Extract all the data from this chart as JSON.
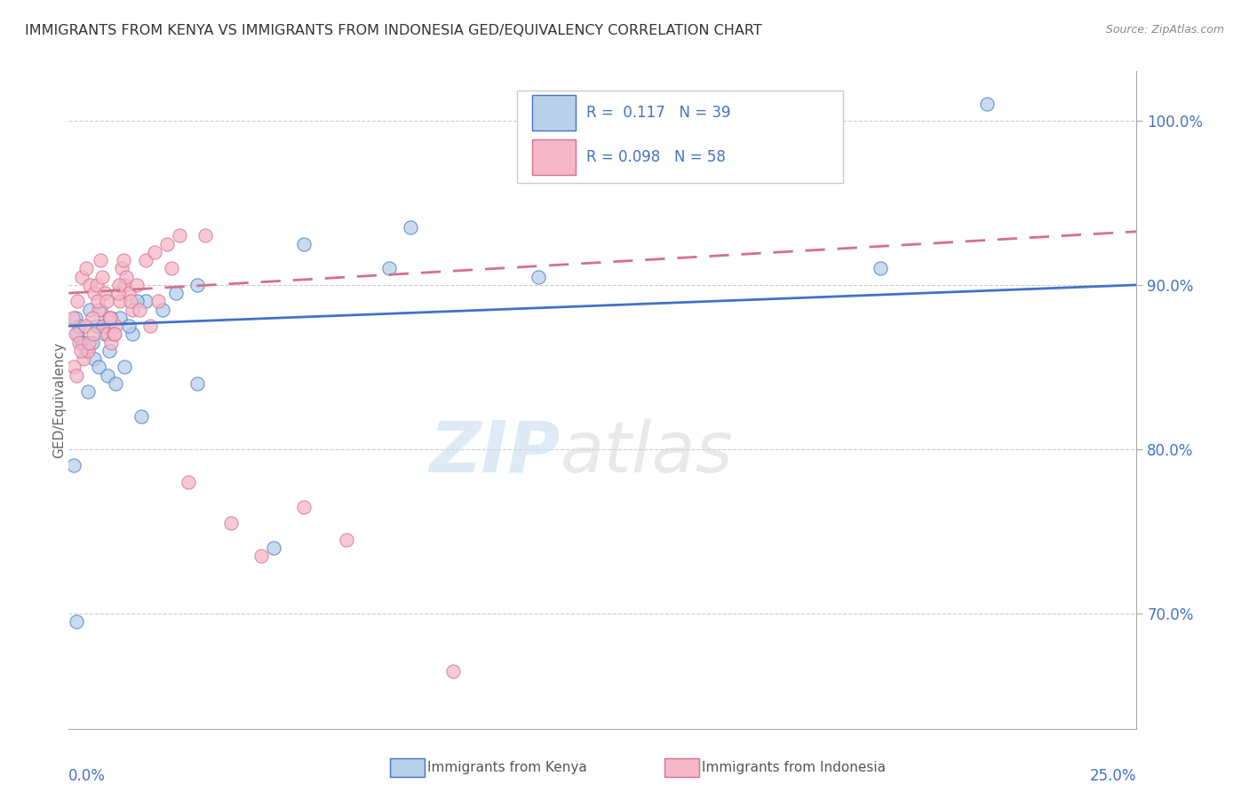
{
  "title": "IMMIGRANTS FROM KENYA VS IMMIGRANTS FROM INDONESIA GED/EQUIVALENCY CORRELATION CHART",
  "source": "Source: ZipAtlas.com",
  "ylabel": "GED/Equivalency",
  "xlim": [
    0.0,
    25.0
  ],
  "ylim": [
    63.0,
    103.0
  ],
  "yticks": [
    70.0,
    80.0,
    90.0,
    100.0
  ],
  "ytick_labels": [
    "70.0%",
    "80.0%",
    "90.0%",
    "100.0%"
  ],
  "color_kenya": "#b8d0ea",
  "color_indonesia": "#f4b8c8",
  "line_color_kenya": "#4472c4",
  "line_color_indonesia": "#d47090",
  "kenya_x": [
    0.5,
    0.8,
    1.0,
    0.2,
    0.3,
    0.4,
    0.6,
    0.7,
    0.9,
    1.1,
    1.3,
    1.5,
    0.15,
    0.25,
    0.35,
    1.8,
    2.2,
    2.5,
    3.0,
    0.55,
    0.65,
    0.75,
    0.85,
    0.95,
    1.2,
    1.4,
    1.6,
    5.5,
    8.0,
    1.7,
    3.0,
    19.0,
    21.5,
    7.5,
    4.8,
    0.12,
    0.18,
    11.0,
    0.45
  ],
  "kenya_y": [
    88.5,
    87.5,
    88.0,
    87.0,
    86.5,
    86.0,
    85.5,
    85.0,
    84.5,
    84.0,
    85.0,
    87.0,
    88.0,
    87.5,
    86.5,
    89.0,
    88.5,
    89.5,
    90.0,
    86.5,
    87.5,
    88.5,
    87.0,
    86.0,
    88.0,
    87.5,
    89.0,
    92.5,
    93.5,
    82.0,
    84.0,
    91.0,
    101.0,
    91.0,
    74.0,
    79.0,
    69.5,
    90.5,
    83.5
  ],
  "indonesia_x": [
    0.1,
    0.2,
    0.3,
    0.4,
    0.5,
    0.6,
    0.7,
    0.8,
    0.9,
    1.0,
    1.1,
    1.2,
    1.3,
    1.4,
    1.5,
    0.15,
    0.25,
    0.35,
    0.45,
    0.55,
    0.65,
    0.75,
    0.85,
    0.95,
    1.05,
    1.15,
    1.25,
    1.35,
    1.6,
    1.8,
    2.0,
    2.3,
    2.6,
    0.12,
    0.18,
    0.28,
    0.38,
    0.48,
    0.58,
    0.68,
    0.78,
    0.88,
    0.98,
    1.08,
    1.18,
    1.28,
    1.45,
    1.65,
    1.9,
    2.1,
    2.4,
    3.2,
    5.5,
    9.0,
    3.8,
    2.8,
    6.5,
    4.5
  ],
  "indonesia_y": [
    88.0,
    89.0,
    90.5,
    91.0,
    90.0,
    89.5,
    88.5,
    87.5,
    87.0,
    86.5,
    87.5,
    89.0,
    90.0,
    89.5,
    88.5,
    87.0,
    86.5,
    85.5,
    86.0,
    88.0,
    90.0,
    91.5,
    89.5,
    88.0,
    87.0,
    89.5,
    91.0,
    90.5,
    90.0,
    91.5,
    92.0,
    92.5,
    93.0,
    85.0,
    84.5,
    86.0,
    87.5,
    86.5,
    87.0,
    89.0,
    90.5,
    89.0,
    88.0,
    87.0,
    90.0,
    91.5,
    89.0,
    88.5,
    87.5,
    89.0,
    91.0,
    93.0,
    76.5,
    66.5,
    75.5,
    78.0,
    74.5,
    73.5
  ],
  "title_color": "#333333",
  "axis_color": "#4472c4",
  "background_color": "#ffffff",
  "grid_color": "#cccccc"
}
